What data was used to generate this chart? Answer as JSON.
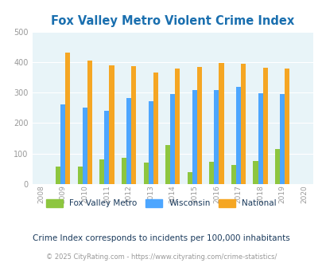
{
  "title": "Fox Valley Metro Violent Crime Index",
  "years": [
    2008,
    2009,
    2010,
    2011,
    2012,
    2013,
    2014,
    2015,
    2016,
    2017,
    2018,
    2019,
    2020
  ],
  "fox_valley": [
    null,
    57,
    57,
    82,
    87,
    70,
    128,
    38,
    73,
    62,
    77,
    115,
    null
  ],
  "wisconsin": [
    null,
    260,
    250,
    241,
    281,
    272,
    294,
    307,
    307,
    319,
    298,
    295,
    null
  ],
  "national": [
    null,
    432,
    405,
    388,
    387,
    367,
    378,
    384,
    397,
    394,
    381,
    379,
    null
  ],
  "fox_valley_color": "#8dc63f",
  "wisconsin_color": "#4da6ff",
  "national_color": "#f5a623",
  "bg_color": "#e8f4f8",
  "ylim": [
    0,
    500
  ],
  "yticks": [
    0,
    100,
    200,
    300,
    400,
    500
  ],
  "legend_labels": [
    "Fox Valley Metro",
    "Wisconsin",
    "National"
  ],
  "subtitle": "Crime Index corresponds to incidents per 100,000 inhabitants",
  "footer": "© 2025 CityRating.com - https://www.cityrating.com/crime-statistics/",
  "title_color": "#1a6faf",
  "subtitle_color": "#1a3a5c",
  "footer_color": "#999999",
  "bar_width": 0.22,
  "grid_color": "#ffffff"
}
